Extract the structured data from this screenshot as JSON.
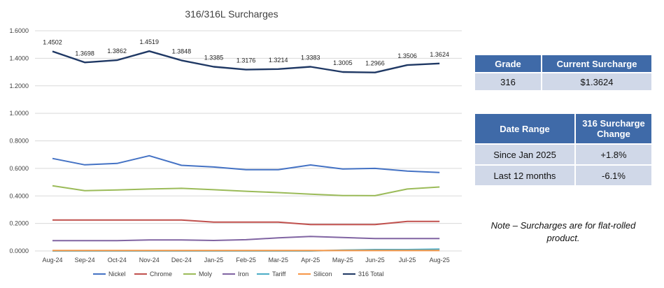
{
  "chart_data": {
    "type": "line",
    "title": "316/316L Surcharges",
    "categories": [
      "Aug-24",
      "Sep-24",
      "Oct-24",
      "Nov-24",
      "Dec-24",
      "Jan-25",
      "Feb-25",
      "Mar-25",
      "Apr-25",
      "May-25",
      "Jun-25",
      "Jul-25",
      "Aug-25"
    ],
    "yticks": [
      "1.6000",
      "1.4000",
      "1.2000",
      "1.0000",
      "0.8000",
      "0.6000",
      "0.4000",
      "0.2000",
      "0.0000"
    ],
    "ylim": [
      0,
      1.6
    ],
    "grid": true,
    "legend_position": "bottom",
    "series": [
      {
        "name": "Nickel",
        "color": "#4472c4",
        "values": [
          0.672,
          0.626,
          0.636,
          0.692,
          0.622,
          0.61,
          0.59,
          0.59,
          0.625,
          0.596,
          0.6,
          0.58,
          0.57
        ]
      },
      {
        "name": "Chrome",
        "color": "#c0504d",
        "values": [
          0.225,
          0.225,
          0.225,
          0.225,
          0.225,
          0.21,
          0.21,
          0.21,
          0.192,
          0.192,
          0.192,
          0.215,
          0.215
        ]
      },
      {
        "name": "Moly",
        "color": "#9bbb59",
        "values": [
          0.474,
          0.438,
          0.443,
          0.45,
          0.455,
          0.445,
          0.434,
          0.424,
          0.413,
          0.403,
          0.402,
          0.45,
          0.465
        ]
      },
      {
        "name": "Iron",
        "color": "#8064a2",
        "values": [
          0.075,
          0.075,
          0.075,
          0.08,
          0.08,
          0.076,
          0.082,
          0.095,
          0.105,
          0.098,
          0.09,
          0.09,
          0.09
        ]
      },
      {
        "name": "Tariff",
        "color": "#4bacc6",
        "values": [
          0,
          0,
          0,
          0,
          0,
          0,
          0,
          0,
          0,
          0.006,
          0.01,
          0.01,
          0.013
        ]
      },
      {
        "name": "Silicon",
        "color": "#f79646",
        "values": [
          0.003,
          0.003,
          0.003,
          0.003,
          0.003,
          0.003,
          0.003,
          0.003,
          0.003,
          0.003,
          0.003,
          0.003,
          0.003
        ]
      },
      {
        "name": "316 Total",
        "color": "#1f3864",
        "values": [
          1.4502,
          1.3698,
          1.3862,
          1.4519,
          1.3848,
          1.3385,
          1.3176,
          1.3214,
          1.3383,
          1.3005,
          1.2966,
          1.3506,
          1.3624
        ],
        "labels": [
          "1.4502",
          "1.3698",
          "1.3862",
          "1.4519",
          "1.3848",
          "1.3385",
          "1.3176",
          "1.3214",
          "1.3383",
          "1.3005",
          "1.2966",
          "1.3506",
          "1.3624"
        ]
      }
    ]
  },
  "grade_table": {
    "headers": [
      "Grade",
      "Current Surcharge"
    ],
    "row": [
      "316",
      "$1.3624"
    ]
  },
  "change_table": {
    "headers": [
      "Date Range",
      "316 Surcharge Change"
    ],
    "rows": [
      [
        "Since Jan 2025",
        "+1.8%"
      ],
      [
        "Last 12 months",
        "-6.1%"
      ]
    ]
  },
  "note": "Note – Surcharges are for flat-rolled product."
}
